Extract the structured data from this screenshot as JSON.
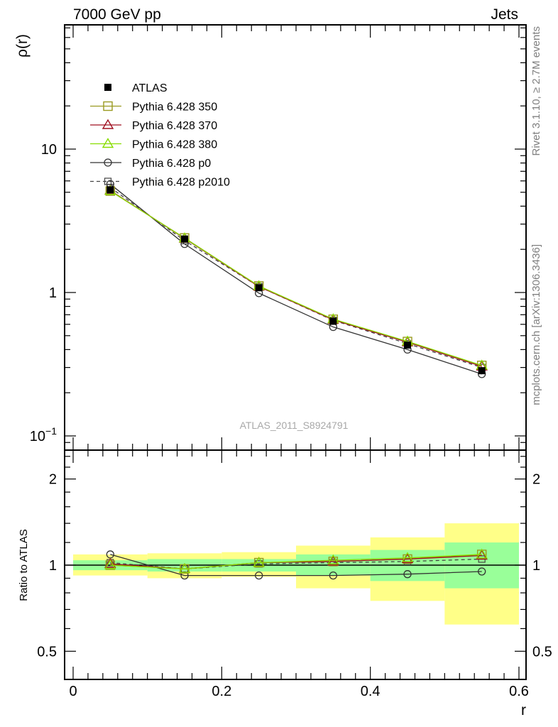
{
  "header": {
    "left": "7000 GeV pp",
    "right": "Jets"
  },
  "side_text": {
    "rivet": "Rivet 3.1.10, ≥ 2.7M events",
    "mcplots": "mcplots.cern.ch [arXiv:1306.3436]"
  },
  "watermark": "ATLAS_2011_S8924791",
  "chart_data": [
    {
      "type": "line",
      "panel": "main",
      "ylabel": "ρ(r)",
      "yscale": "log",
      "ylim": [
        0.08,
        70
      ],
      "xlim": [
        -0.013,
        0.6
      ],
      "y_ticks": [
        {
          "v": 10,
          "base": "10",
          "exp": ""
        },
        {
          "v": 1,
          "base": "1",
          "exp": ""
        },
        {
          "v": 0.1,
          "base": "10",
          "exp": "−1"
        }
      ],
      "x": [
        0.05,
        0.15,
        0.25,
        0.35,
        0.45,
        0.55
      ],
      "legend_position": "top-left",
      "series": [
        {
          "name": "ATLAS",
          "color": "#000000",
          "marker": "filled-square",
          "line": "none",
          "values": [
            5.2,
            2.36,
            1.08,
            0.63,
            0.43,
            0.285
          ]
        },
        {
          "name": "Pythia 6.428 350",
          "color": "#9a9a20",
          "marker": "open-square",
          "line": "solid",
          "values": [
            5.1,
            2.4,
            1.11,
            0.65,
            0.455,
            0.31
          ]
        },
        {
          "name": "Pythia 6.428 370",
          "color": "#a01020",
          "marker": "open-triangle",
          "line": "solid",
          "values": [
            5.15,
            2.38,
            1.1,
            0.645,
            0.45,
            0.305
          ]
        },
        {
          "name": "Pythia 6.428 380",
          "color": "#88dd00",
          "marker": "open-triangle",
          "line": "solid",
          "values": [
            5.12,
            2.39,
            1.11,
            0.652,
            0.456,
            0.31
          ]
        },
        {
          "name": "Pythia 6.428 p0",
          "color": "#333333",
          "marker": "open-circle",
          "line": "solid",
          "values": [
            5.7,
            2.18,
            0.99,
            0.575,
            0.4,
            0.27
          ]
        },
        {
          "name": "Pythia 6.428 p2010",
          "color": "#444444",
          "marker": "open-square-small",
          "line": "dashed",
          "values": [
            5.4,
            2.3,
            1.1,
            0.64,
            0.44,
            0.3
          ]
        }
      ]
    },
    {
      "type": "line",
      "panel": "ratio",
      "ylabel": "Ratio to ATLAS",
      "xlabel": "r",
      "yscale": "log",
      "ylim": [
        0.42,
        2.4
      ],
      "xlim": [
        -0.013,
        0.6
      ],
      "y_ticks": [
        {
          "v": 2,
          "label": "2"
        },
        {
          "v": 1,
          "label": "1"
        },
        {
          "v": 0.5,
          "label": "0.5"
        }
      ],
      "x_ticks": [
        {
          "v": 0,
          "label": "0"
        },
        {
          "v": 0.2,
          "label": "0.2"
        },
        {
          "v": 0.4,
          "label": "0.4"
        },
        {
          "v": 0.6,
          "label": "0.6"
        }
      ],
      "bands": {
        "bins": [
          [
            0.0,
            0.1
          ],
          [
            0.1,
            0.2
          ],
          [
            0.2,
            0.3
          ],
          [
            0.3,
            0.4
          ],
          [
            0.4,
            0.5
          ],
          [
            0.5,
            0.6
          ]
        ],
        "outer": [
          [
            0.92,
            1.09
          ],
          [
            0.9,
            1.1
          ],
          [
            0.91,
            1.11
          ],
          [
            0.83,
            1.17
          ],
          [
            0.75,
            1.25
          ],
          [
            0.62,
            1.4
          ]
        ],
        "inner": [
          [
            0.96,
            1.04
          ],
          [
            0.95,
            1.05
          ],
          [
            0.95,
            1.05
          ],
          [
            0.92,
            1.09
          ],
          [
            0.88,
            1.13
          ],
          [
            0.83,
            1.2
          ]
        ],
        "outer_color": "#ffff88",
        "inner_color": "#99ff99"
      },
      "x": [
        0.05,
        0.15,
        0.25,
        0.35,
        0.45,
        0.55
      ],
      "series": [
        {
          "name": "Pythia 6.428 350",
          "values": [
            1.0,
            0.97,
            1.02,
            1.03,
            1.05,
            1.09
          ]
        },
        {
          "name": "Pythia 6.428 370",
          "values": [
            1.01,
            0.97,
            1.02,
            1.03,
            1.05,
            1.08
          ]
        },
        {
          "name": "Pythia 6.428 380",
          "values": [
            1.0,
            0.97,
            1.02,
            1.04,
            1.06,
            1.09
          ]
        },
        {
          "name": "Pythia 6.428 p0",
          "values": [
            1.09,
            0.92,
            0.92,
            0.92,
            0.93,
            0.95
          ]
        },
        {
          "name": "Pythia 6.428 p2010",
          "values": [
            1.02,
            0.97,
            1.01,
            1.02,
            1.03,
            1.05
          ]
        }
      ]
    }
  ]
}
